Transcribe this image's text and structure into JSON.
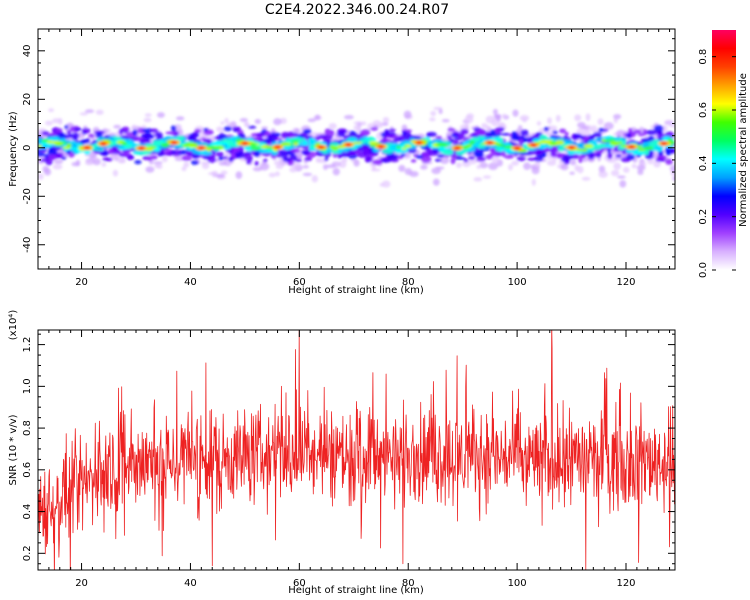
{
  "title": "C2E4.2022.346.00.24.R07",
  "colors": {
    "snr_line": "#ee2222",
    "axes": "#000000",
    "background": "#ffffff"
  },
  "chart_data": [
    {
      "type": "heatmap",
      "title": "C2E4.2022.346.00.24.R07",
      "xlabel": "Height of straight line (km)",
      "ylabel": "Frequency (Hz)",
      "xlim": [
        12,
        129
      ],
      "ylim": [
        -50,
        49
      ],
      "xticks": [
        20,
        40,
        60,
        80,
        100,
        120
      ],
      "yticks": [
        -40,
        -20,
        0,
        20,
        40
      ],
      "description_band_center_hz": 1,
      "band_halfwidth_hz": 7,
      "colorbar": {
        "label": "Normalized spectral amplitude",
        "range": [
          0.0,
          0.9
        ],
        "ticks": [
          0.0,
          0.2,
          0.4,
          0.6,
          0.8
        ],
        "colormap": [
          "#ffffff",
          "#d8b0ff",
          "#a040ff",
          "#5000ff",
          "#0000ff",
          "#00a0ff",
          "#00ffff",
          "#00ff60",
          "#40ff00",
          "#ffff00",
          "#ffa000",
          "#ff4000",
          "#ff0000",
          "#ff0060"
        ]
      },
      "hotspots_km": [
        21,
        24,
        31,
        37,
        42,
        50,
        56,
        64,
        69,
        75,
        82,
        89,
        95,
        100,
        103,
        110,
        121,
        127
      ]
    },
    {
      "type": "line",
      "xlabel": "Height of straight line (km)",
      "ylabel": "SNR (10 * v/v)",
      "y_multiplier": "(x10⁴)",
      "xlim": [
        12,
        129
      ],
      "ylim": [
        0.12,
        1.27
      ],
      "xticks": [
        20,
        40,
        60,
        80,
        100,
        120
      ],
      "yticks": [
        0.2,
        0.4,
        0.6,
        0.8,
        1.0,
        1.2
      ],
      "series": [
        {
          "description": "Noisy SNR trace rising from ~0.45 at 12 km to ~0.65 mean beyond 25 km",
          "mean_profile": [
            [
              12,
              0.42
            ],
            [
              20,
              0.52
            ],
            [
              25,
              0.62
            ],
            [
              40,
              0.66
            ],
            [
              60,
              0.68
            ],
            [
              80,
              0.67
            ],
            [
              100,
              0.66
            ],
            [
              129,
              0.64
            ]
          ],
          "noise_amplitude": 0.14,
          "notable_peaks": [
            [
              60,
              1.27
            ],
            [
              44,
              0.14
            ],
            [
              79,
              0.15
            ]
          ]
        }
      ]
    }
  ]
}
